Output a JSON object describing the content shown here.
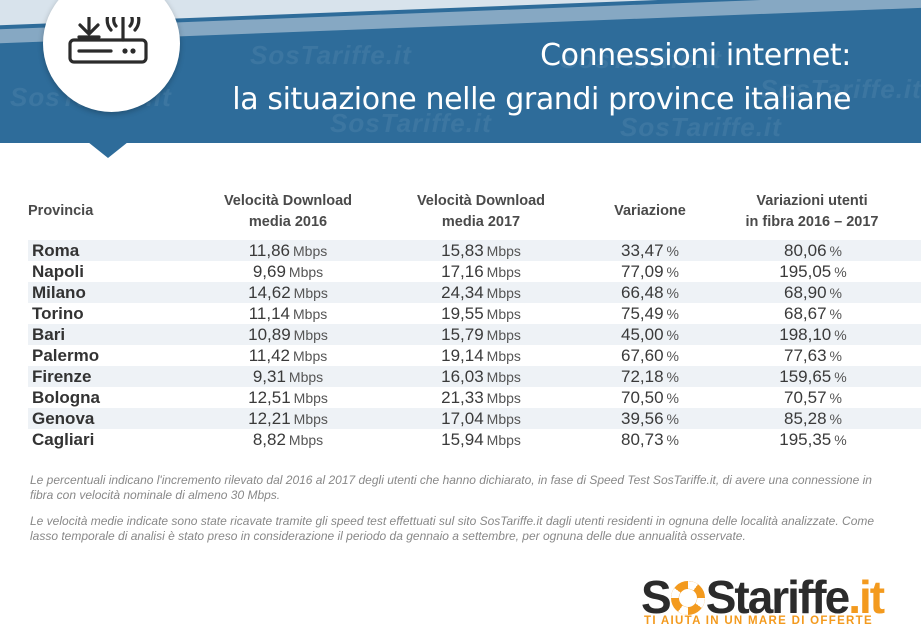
{
  "header": {
    "title_line1": "Connessioni internet:",
    "title_line2": "la situazione nelle grandi province italiane",
    "watermark": "SosTariffe.it",
    "icon": "router-download-icon"
  },
  "colors": {
    "banner": "#2e6c9a",
    "row_shade": "#eef2f6",
    "logo_orange": "#f39a1e",
    "logo_dark": "#2b2b2b"
  },
  "chart_data": {
    "type": "table",
    "columns": [
      {
        "key": "provincia",
        "label_line1": "Provincia",
        "label_line2": ""
      },
      {
        "key": "download_2016",
        "label_line1": "Velocità Download",
        "label_line2": "media 2016",
        "unit": "Mbps"
      },
      {
        "key": "download_2017",
        "label_line1": "Velocità Download",
        "label_line2": "media 2017",
        "unit": "Mbps"
      },
      {
        "key": "variazione",
        "label_line1": "Variazione",
        "label_line2": "",
        "unit": "%"
      },
      {
        "key": "fibra",
        "label_line1": "Variazioni utenti",
        "label_line2": "in fibra 2016 – 2017",
        "unit": "%"
      }
    ],
    "rows": [
      {
        "provincia": "Roma",
        "download_2016": "11,86",
        "download_2017": "15,83",
        "variazione": "33,47",
        "fibra": "80,06"
      },
      {
        "provincia": "Napoli",
        "download_2016": "9,69",
        "download_2017": "17,16",
        "variazione": "77,09",
        "fibra": "195,05"
      },
      {
        "provincia": "Milano",
        "download_2016": "14,62",
        "download_2017": "24,34",
        "variazione": "66,48",
        "fibra": "68,90"
      },
      {
        "provincia": "Torino",
        "download_2016": "11,14",
        "download_2017": "19,55",
        "variazione": "75,49",
        "fibra": "68,67"
      },
      {
        "provincia": "Bari",
        "download_2016": "10,89",
        "download_2017": "15,79",
        "variazione": "45,00",
        "fibra": "198,10"
      },
      {
        "provincia": "Palermo",
        "download_2016": "11,42",
        "download_2017": "19,14",
        "variazione": "67,60",
        "fibra": "77,63"
      },
      {
        "provincia": "Firenze",
        "download_2016": "9,31",
        "download_2017": "16,03",
        "variazione": "72,18",
        "fibra": "159,65"
      },
      {
        "provincia": "Bologna",
        "download_2016": "12,51",
        "download_2017": "21,33",
        "variazione": "70,50",
        "fibra": "70,57"
      },
      {
        "provincia": "Genova",
        "download_2016": "12,21",
        "download_2017": "17,04",
        "variazione": "39,56",
        "fibra": "85,28"
      },
      {
        "provincia": "Cagliari",
        "download_2016": "8,82",
        "download_2017": "15,94",
        "variazione": "80,73",
        "fibra": "195,35"
      }
    ]
  },
  "notes": {
    "note1": "Le percentuali indicano l'incremento rilevato dal 2016 al 2017 degli utenti che hanno dichiarato, in fase di Speed Test SosTariffe.it, di avere una connessione in fibra con velocità nominale di almeno 30 Mbps.",
    "note2": "Le velocità medie indicate sono state ricavate tramite gli speed test effettuati sul sito SosTariffe.it dagli utenti residenti in ognuna delle località analizzate. Come lasso temporale di analisi è stato preso in considerazione il periodo da gennaio a settembre, per ognuna delle due annualità osservate."
  },
  "logo": {
    "part_s1": "S",
    "part_s2": "S",
    "part_tariffe": "tariffe",
    "part_it": ".it",
    "tagline": "TI AIUTA IN UN MARE DI OFFERTE"
  }
}
